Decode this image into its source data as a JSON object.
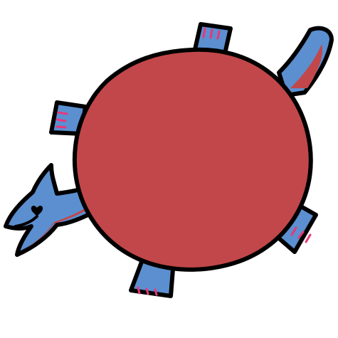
{
  "drawing": {
    "subject": "turtle",
    "view": "top-down",
    "parts": {
      "shell": "shell-icon",
      "head": "head-icon",
      "tail": "tail-icon",
      "legs": [
        "front-left-leg",
        "front-right-leg",
        "back-left-leg",
        "back-right-leg"
      ]
    },
    "colors": {
      "shell": "#c2474a",
      "skin": "#5b8fd0",
      "belly": "#c2474a",
      "toes": "#e8377a",
      "outline": "#000000",
      "background": "#ffffff"
    }
  }
}
